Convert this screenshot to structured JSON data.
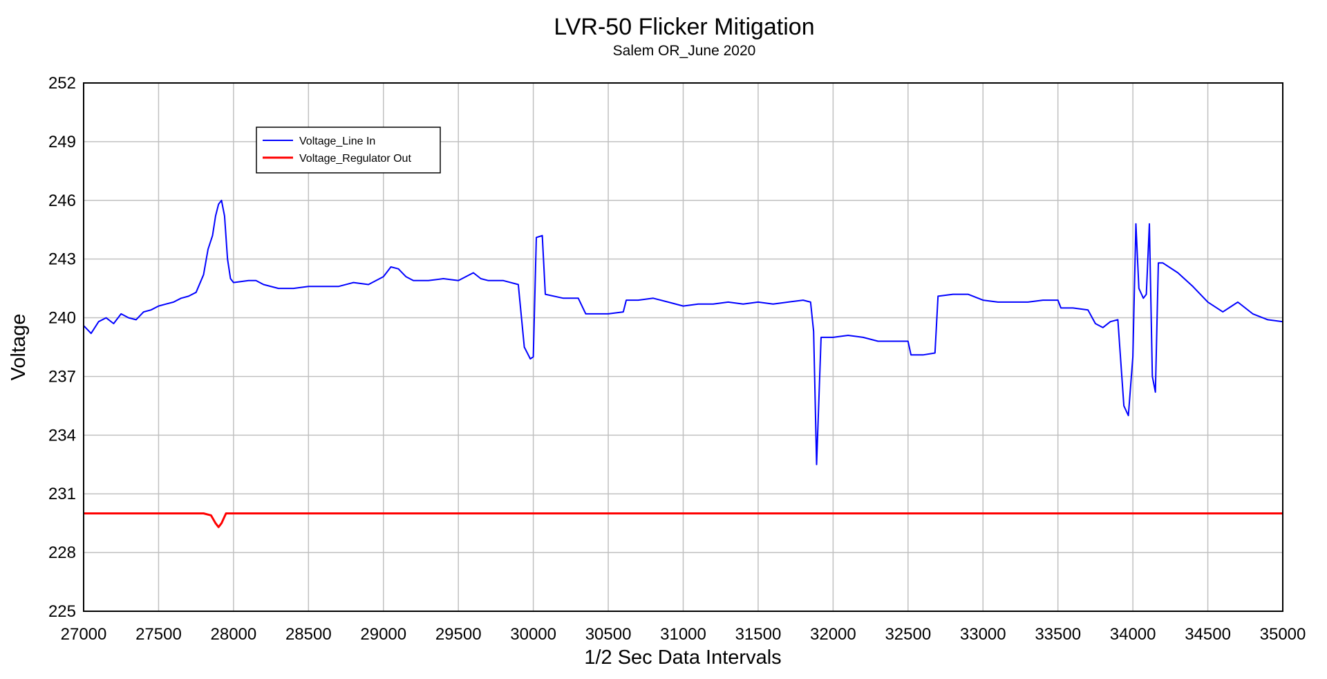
{
  "chart_data": {
    "type": "line",
    "title": "LVR-50 Flicker Mitigation",
    "subtitle": "Salem OR_June 2020",
    "xlabel": "1/2 Sec Data Intervals",
    "ylabel": "Voltage",
    "xlim": [
      27000,
      35000
    ],
    "ylim": [
      225,
      252
    ],
    "x_ticks": [
      "27000",
      "27500",
      "28000",
      "28500",
      "29000",
      "29500",
      "30000",
      "30500",
      "31000",
      "31500",
      "32000",
      "32500",
      "33000",
      "33500",
      "34000",
      "34500",
      "35000"
    ],
    "y_ticks": [
      "225",
      "228",
      "231",
      "234",
      "237",
      "240",
      "243",
      "246",
      "249",
      "252"
    ],
    "grid": true,
    "legend_position": "top-left",
    "colors": {
      "line_in": "#0000ff",
      "regulator_out": "#ff0000",
      "grid": "#c0c0c0"
    },
    "series": [
      {
        "name": "Voltage_Line In",
        "color": "#0000ff",
        "points": [
          [
            27000,
            239.6
          ],
          [
            27050,
            239.2
          ],
          [
            27100,
            239.8
          ],
          [
            27150,
            240.0
          ],
          [
            27200,
            239.7
          ],
          [
            27250,
            240.2
          ],
          [
            27300,
            240.0
          ],
          [
            27350,
            239.9
          ],
          [
            27400,
            240.3
          ],
          [
            27450,
            240.4
          ],
          [
            27500,
            240.6
          ],
          [
            27550,
            240.7
          ],
          [
            27600,
            240.8
          ],
          [
            27650,
            241.0
          ],
          [
            27700,
            241.1
          ],
          [
            27750,
            241.3
          ],
          [
            27800,
            242.2
          ],
          [
            27830,
            243.5
          ],
          [
            27860,
            244.2
          ],
          [
            27880,
            245.2
          ],
          [
            27900,
            245.8
          ],
          [
            27920,
            246.0
          ],
          [
            27940,
            245.2
          ],
          [
            27960,
            243.0
          ],
          [
            27980,
            242.0
          ],
          [
            28000,
            241.8
          ],
          [
            28100,
            241.9
          ],
          [
            28150,
            241.9
          ],
          [
            28200,
            241.7
          ],
          [
            28300,
            241.5
          ],
          [
            28400,
            241.5
          ],
          [
            28500,
            241.6
          ],
          [
            28600,
            241.6
          ],
          [
            28700,
            241.6
          ],
          [
            28800,
            241.8
          ],
          [
            28900,
            241.7
          ],
          [
            29000,
            242.1
          ],
          [
            29050,
            242.6
          ],
          [
            29100,
            242.5
          ],
          [
            29150,
            242.1
          ],
          [
            29200,
            241.9
          ],
          [
            29300,
            241.9
          ],
          [
            29400,
            242.0
          ],
          [
            29500,
            241.9
          ],
          [
            29600,
            242.3
          ],
          [
            29650,
            242.0
          ],
          [
            29700,
            241.9
          ],
          [
            29800,
            241.9
          ],
          [
            29900,
            241.7
          ],
          [
            29940,
            238.5
          ],
          [
            29980,
            237.9
          ],
          [
            30000,
            238.0
          ],
          [
            30020,
            244.1
          ],
          [
            30060,
            244.2
          ],
          [
            30080,
            241.2
          ],
          [
            30200,
            241.0
          ],
          [
            30300,
            241.0
          ],
          [
            30350,
            240.2
          ],
          [
            30400,
            240.2
          ],
          [
            30500,
            240.2
          ],
          [
            30600,
            240.3
          ],
          [
            30620,
            240.9
          ],
          [
            30700,
            240.9
          ],
          [
            30800,
            241.0
          ],
          [
            30900,
            240.8
          ],
          [
            31000,
            240.6
          ],
          [
            31100,
            240.7
          ],
          [
            31200,
            240.7
          ],
          [
            31300,
            240.8
          ],
          [
            31400,
            240.7
          ],
          [
            31500,
            240.8
          ],
          [
            31600,
            240.7
          ],
          [
            31700,
            240.8
          ],
          [
            31800,
            240.9
          ],
          [
            31850,
            240.8
          ],
          [
            31870,
            239.3
          ],
          [
            31890,
            232.5
          ],
          [
            31920,
            239.0
          ],
          [
            32000,
            239.0
          ],
          [
            32100,
            239.1
          ],
          [
            32200,
            239.0
          ],
          [
            32300,
            238.8
          ],
          [
            32400,
            238.8
          ],
          [
            32500,
            238.8
          ],
          [
            32520,
            238.1
          ],
          [
            32600,
            238.1
          ],
          [
            32680,
            238.2
          ],
          [
            32700,
            241.1
          ],
          [
            32800,
            241.2
          ],
          [
            32900,
            241.2
          ],
          [
            33000,
            240.9
          ],
          [
            33100,
            240.8
          ],
          [
            33200,
            240.8
          ],
          [
            33300,
            240.8
          ],
          [
            33400,
            240.9
          ],
          [
            33500,
            240.9
          ],
          [
            33520,
            240.5
          ],
          [
            33600,
            240.5
          ],
          [
            33700,
            240.4
          ],
          [
            33750,
            239.7
          ],
          [
            33800,
            239.5
          ],
          [
            33850,
            239.8
          ],
          [
            33900,
            239.9
          ],
          [
            33940,
            235.5
          ],
          [
            33970,
            235.0
          ],
          [
            34000,
            238.0
          ],
          [
            34020,
            244.8
          ],
          [
            34040,
            241.5
          ],
          [
            34070,
            241.0
          ],
          [
            34090,
            241.2
          ],
          [
            34110,
            244.8
          ],
          [
            34130,
            237.0
          ],
          [
            34150,
            236.2
          ],
          [
            34170,
            242.8
          ],
          [
            34200,
            242.8
          ],
          [
            34300,
            242.3
          ],
          [
            34400,
            241.6
          ],
          [
            34500,
            240.8
          ],
          [
            34600,
            240.3
          ],
          [
            34700,
            240.8
          ],
          [
            34800,
            240.2
          ],
          [
            34900,
            239.9
          ],
          [
            35000,
            239.8
          ]
        ]
      },
      {
        "name": "Voltage_Regulator Out",
        "color": "#ff0000",
        "points": [
          [
            27000,
            230.0
          ],
          [
            27500,
            230.0
          ],
          [
            27800,
            230.0
          ],
          [
            27850,
            229.9
          ],
          [
            27880,
            229.5
          ],
          [
            27900,
            229.3
          ],
          [
            27920,
            229.5
          ],
          [
            27950,
            230.0
          ],
          [
            28000,
            230.0
          ],
          [
            28500,
            230.0
          ],
          [
            29000,
            230.0
          ],
          [
            29500,
            230.0
          ],
          [
            30000,
            230.0
          ],
          [
            30500,
            230.0
          ],
          [
            31000,
            230.0
          ],
          [
            31500,
            230.0
          ],
          [
            32000,
            230.0
          ],
          [
            32500,
            230.0
          ],
          [
            33000,
            230.0
          ],
          [
            33500,
            230.0
          ],
          [
            34000,
            230.0
          ],
          [
            34500,
            230.0
          ],
          [
            35000,
            230.0
          ]
        ]
      }
    ]
  }
}
